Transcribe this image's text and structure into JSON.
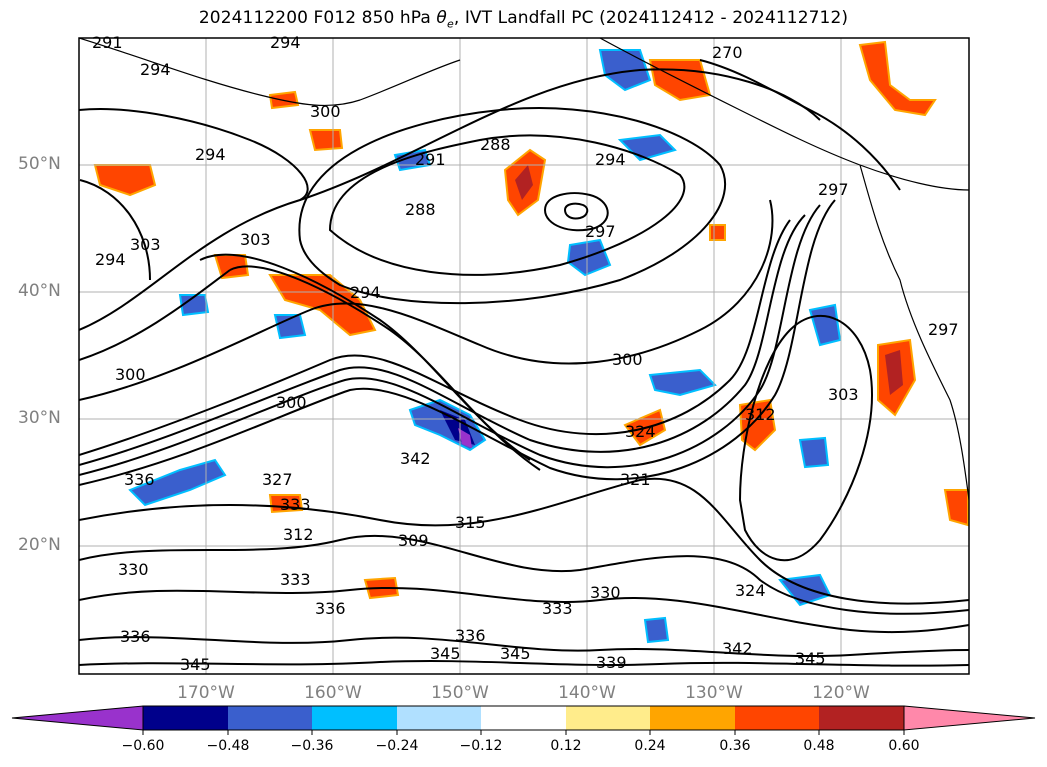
{
  "title": "2024112200 F012 850 hPa θe, IVT Landfall PC (2024112412 - 2024112712)",
  "title_parts": {
    "prefix": "2024112200 F012 850 hPa ",
    "theta": "θ",
    "subscript": "e",
    "suffix": ", IVT Landfall PC (2024112412 - 2024112712)"
  },
  "latitude_labels": [
    "50°N",
    "40°N",
    "30°N",
    "20°N"
  ],
  "longitude_labels": [
    "170°W",
    "160°W",
    "150°W",
    "140°W",
    "130°W",
    "120°W"
  ],
  "colorbar": {
    "ticks": [
      "−0.60",
      "−0.48",
      "−0.36",
      "−0.24",
      "−0.12",
      "0.12",
      "0.24",
      "0.36",
      "0.48",
      "0.60"
    ],
    "colors": [
      "#9932CC",
      "#00008B",
      "#3A5FCD",
      "#00BFFF",
      "#B0E0FF",
      "#FFFFFF",
      "#FFEC8B",
      "#FFA500",
      "#FF4500",
      "#B22222",
      "#FF88AA"
    ]
  },
  "contour_labels": [
    "291",
    "294",
    "294",
    "300",
    "294",
    "291",
    "288",
    "294",
    "288",
    "297",
    "270",
    "297",
    "303",
    "294",
    "303",
    "294",
    "300",
    "300",
    "303",
    "297",
    "324",
    "321",
    "312",
    "300",
    "336",
    "327",
    "333",
    "312",
    "333",
    "309",
    "336",
    "315",
    "330",
    "333",
    "330",
    "324",
    "336",
    "336",
    "345",
    "342",
    "345",
    "345",
    "339",
    "342",
    "345"
  ],
  "map_colors": {
    "land_border": "#000000",
    "grid": "#b0b0b0",
    "contour": "#000000"
  }
}
